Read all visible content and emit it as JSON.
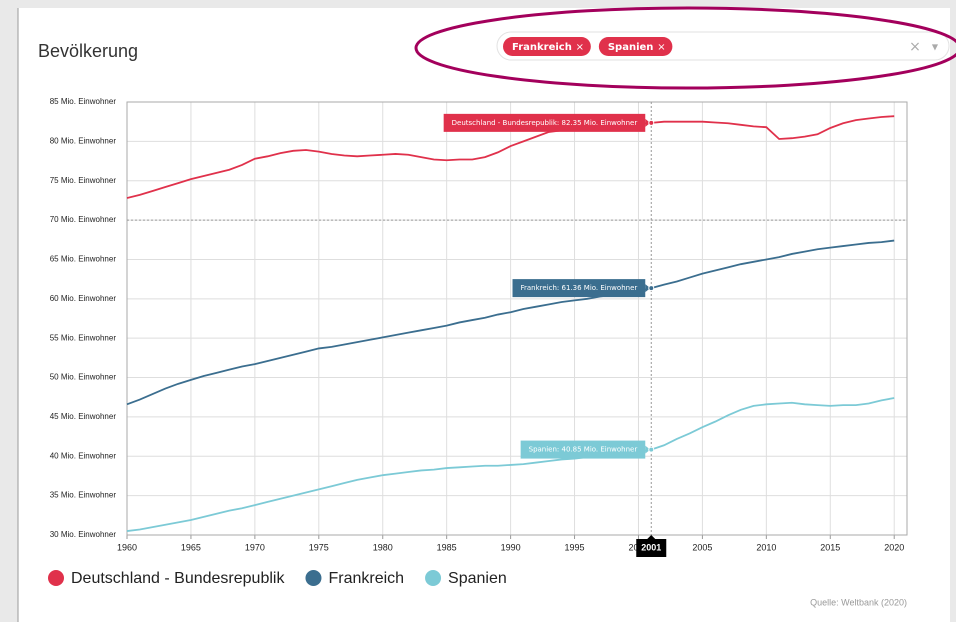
{
  "chart_data": {
    "type": "line",
    "title": "Bevölkerung",
    "filters": [
      "Frankreich",
      "Spanien"
    ],
    "source": "Quelle: Weltbank (2020)",
    "x": [
      1960,
      1961,
      1962,
      1963,
      1964,
      1965,
      1966,
      1967,
      1968,
      1969,
      1970,
      1971,
      1972,
      1973,
      1974,
      1975,
      1976,
      1977,
      1978,
      1979,
      1980,
      1981,
      1982,
      1983,
      1984,
      1985,
      1986,
      1987,
      1988,
      1989,
      1990,
      1991,
      1992,
      1993,
      1994,
      1995,
      1996,
      1997,
      1998,
      1999,
      2000,
      2001,
      2002,
      2003,
      2004,
      2005,
      2006,
      2007,
      2008,
      2009,
      2010,
      2011,
      2012,
      2013,
      2014,
      2015,
      2016,
      2017,
      2018,
      2019,
      2020
    ],
    "series": [
      {
        "name": "Deutschland - Bundesrepublik",
        "color": "#e0314b",
        "values": [
          72.8,
          73.2,
          73.7,
          74.2,
          74.7,
          75.2,
          75.6,
          76.0,
          76.4,
          77.0,
          77.8,
          78.1,
          78.5,
          78.8,
          78.9,
          78.7,
          78.4,
          78.2,
          78.1,
          78.2,
          78.3,
          78.4,
          78.3,
          78.0,
          77.7,
          77.6,
          77.7,
          77.7,
          78.0,
          78.6,
          79.4,
          80.0,
          80.6,
          81.2,
          81.4,
          81.7,
          81.9,
          82.0,
          82.0,
          82.1,
          82.2,
          82.35,
          82.5,
          82.5,
          82.5,
          82.5,
          82.4,
          82.3,
          82.1,
          81.9,
          81.8,
          80.3,
          80.4,
          80.6,
          80.9,
          81.7,
          82.3,
          82.7,
          82.9,
          83.1,
          83.2
        ]
      },
      {
        "name": "Frankreich",
        "color": "#3b6e8f",
        "values": [
          46.6,
          47.2,
          47.9,
          48.6,
          49.2,
          49.7,
          50.2,
          50.6,
          51.0,
          51.4,
          51.7,
          52.1,
          52.5,
          52.9,
          53.3,
          53.7,
          53.9,
          54.2,
          54.5,
          54.8,
          55.1,
          55.4,
          55.7,
          56.0,
          56.3,
          56.6,
          57.0,
          57.3,
          57.6,
          58.0,
          58.3,
          58.7,
          59.0,
          59.3,
          59.6,
          59.8,
          60.0,
          60.3,
          60.5,
          60.8,
          61.0,
          61.36,
          61.8,
          62.2,
          62.7,
          63.2,
          63.6,
          64.0,
          64.4,
          64.7,
          65.0,
          65.3,
          65.7,
          66.0,
          66.3,
          66.5,
          66.7,
          66.9,
          67.1,
          67.2,
          67.4
        ]
      },
      {
        "name": "Spanien",
        "color": "#7ccad6",
        "values": [
          30.5,
          30.7,
          31.0,
          31.3,
          31.6,
          31.9,
          32.3,
          32.7,
          33.1,
          33.4,
          33.8,
          34.2,
          34.6,
          35.0,
          35.4,
          35.8,
          36.2,
          36.6,
          37.0,
          37.3,
          37.6,
          37.8,
          38.0,
          38.2,
          38.3,
          38.5,
          38.6,
          38.7,
          38.8,
          38.8,
          38.9,
          39.0,
          39.2,
          39.4,
          39.6,
          39.7,
          39.9,
          39.9,
          40.0,
          40.2,
          40.6,
          40.85,
          41.4,
          42.2,
          42.9,
          43.7,
          44.4,
          45.2,
          45.9,
          46.4,
          46.6,
          46.7,
          46.8,
          46.6,
          46.5,
          46.4,
          46.5,
          46.5,
          46.7,
          47.1,
          47.4
        ]
      }
    ],
    "xlim": [
      1960,
      2021
    ],
    "xticks": [
      1960,
      1965,
      1970,
      1975,
      1980,
      1985,
      1990,
      1995,
      2000,
      2005,
      2010,
      2015,
      2020
    ],
    "ylim": [
      30,
      85
    ],
    "yticks": [
      {
        "value": 30,
        "label": "30 Mio. Einwohner"
      },
      {
        "value": 35,
        "label": "35 Mio. Einwohner"
      },
      {
        "value": 40,
        "label": "40 Mio. Einwohner"
      },
      {
        "value": 45,
        "label": "45 Mio. Einwohner"
      },
      {
        "value": 50,
        "label": "50 Mio. Einwohner"
      },
      {
        "value": 55,
        "label": "55 Mio. Einwohner"
      },
      {
        "value": 60,
        "label": "60 Mio. Einwohner"
      },
      {
        "value": 65,
        "label": "65 Mio. Einwohner"
      },
      {
        "value": 70,
        "label": "70 Mio. Einwohner"
      },
      {
        "value": 75,
        "label": "75 Mio. Einwohner"
      },
      {
        "value": 80,
        "label": "80 Mio. Einwohner"
      },
      {
        "value": 85,
        "label": "85 Mio. Einwohner"
      }
    ],
    "grid": true,
    "crosshair_x": 2001,
    "crosshair_y": 70,
    "annotations": [
      {
        "text": "Deutschland - Bundesrepublik: 82.35 Mio. Einwohner",
        "x": 2001,
        "y": 82.35,
        "color": "#e0314b"
      },
      {
        "text": "Frankreich: 61.36 Mio. Einwohner",
        "x": 2001,
        "y": 61.36,
        "color": "#3b6e8f"
      },
      {
        "text": "Spanien: 40.85 Mio. Einwohner",
        "x": 2001,
        "y": 40.85,
        "color": "#7ccad6"
      }
    ]
  }
}
